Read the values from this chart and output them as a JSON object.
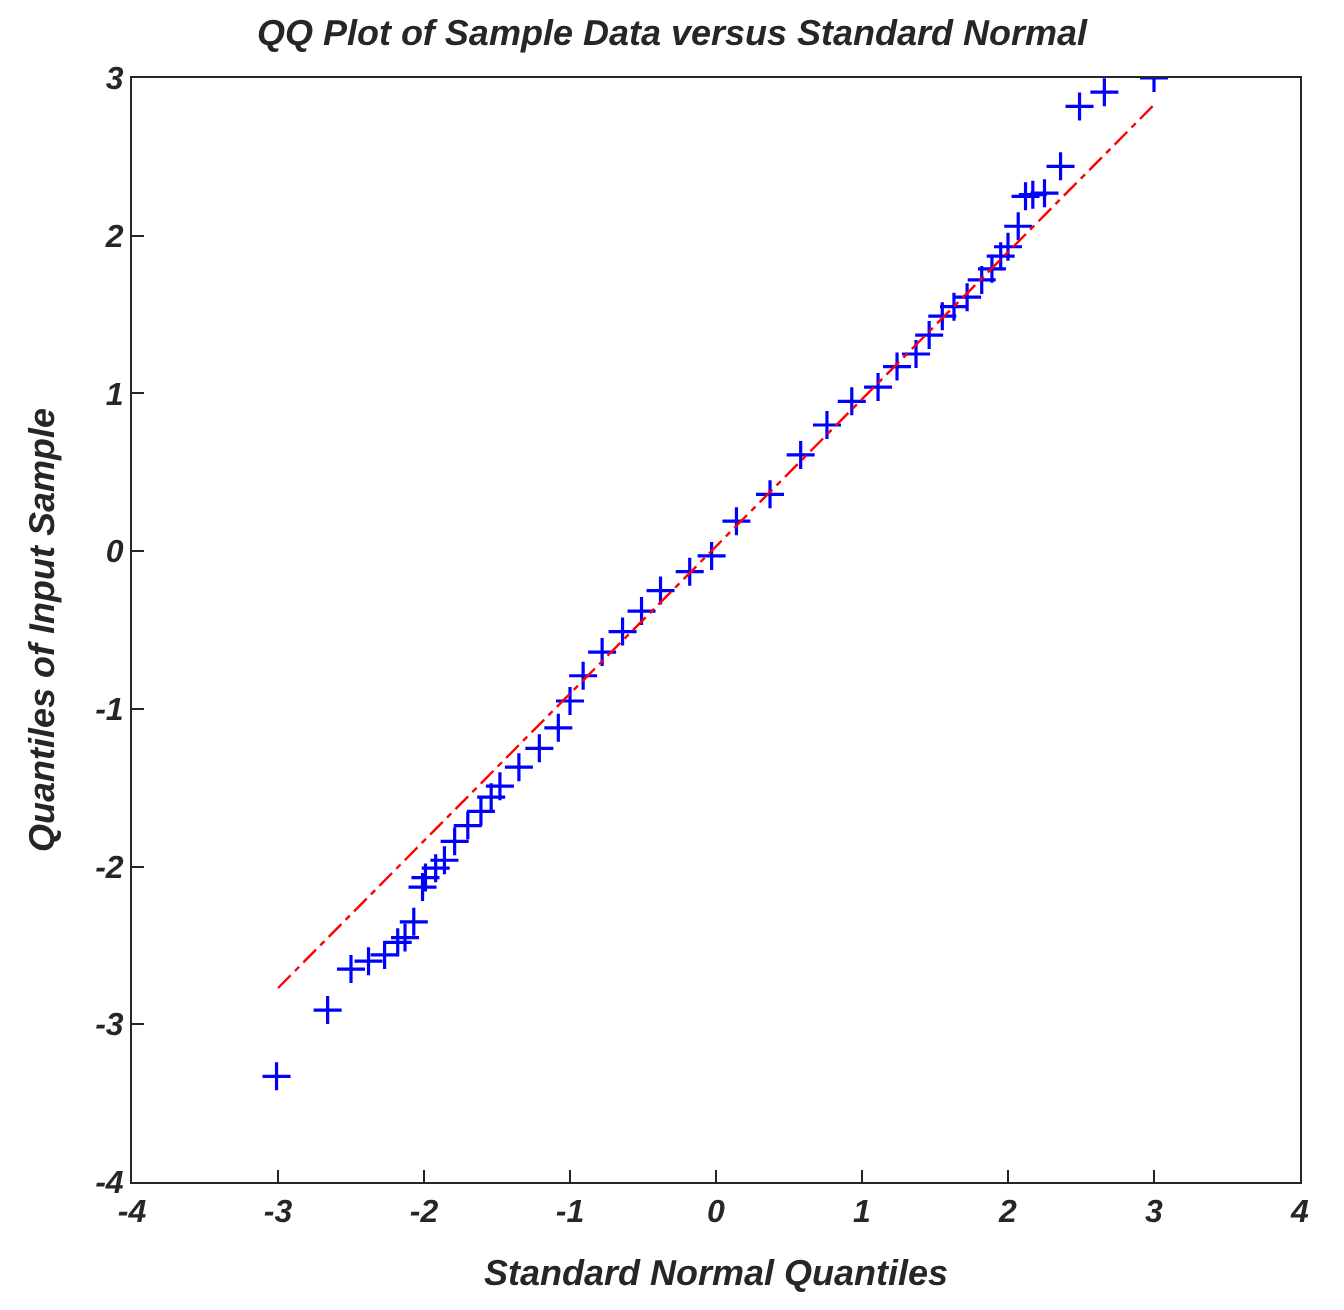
{
  "chart_data": {
    "type": "scatter",
    "title": "QQ Plot of Sample Data versus Standard Normal",
    "xlabel": "Standard Normal Quantiles",
    "ylabel": "Quantiles of Input Sample",
    "xlim": [
      -4,
      4
    ],
    "ylim": [
      -4,
      3
    ],
    "xticks": [
      -4,
      -3,
      -2,
      -1,
      0,
      1,
      2,
      3,
      4
    ],
    "yticks": [
      -4,
      -3,
      -2,
      -1,
      0,
      1,
      2,
      3
    ],
    "series": [
      {
        "marker": "cross",
        "color": "#0000ff",
        "x": [
          -3.01,
          -2.66,
          -2.5,
          -2.38,
          -2.27,
          -2.18,
          -2.13,
          -2.07,
          -2.01,
          -1.99,
          -1.92,
          -1.86,
          -1.79,
          -1.7,
          -1.61,
          -1.54,
          -1.48,
          -1.35,
          -1.21,
          -1.08,
          -1.0,
          -0.91,
          -0.78,
          -0.64,
          -0.51,
          -0.38,
          -0.18,
          -0.03,
          0.14,
          0.37,
          0.58,
          0.76,
          0.93,
          1.11,
          1.24,
          1.37,
          1.46,
          1.55,
          1.63,
          1.72,
          1.82,
          1.89,
          1.95,
          2.0,
          2.07,
          2.12,
          2.17,
          2.25,
          2.36,
          2.49,
          2.66,
          3.0
        ],
        "values": [
          -3.33,
          -2.91,
          -2.65,
          -2.6,
          -2.56,
          -2.48,
          -2.45,
          -2.35,
          -2.13,
          -2.07,
          -2.01,
          -1.96,
          -1.84,
          -1.74,
          -1.65,
          -1.56,
          -1.49,
          -1.37,
          -1.25,
          -1.12,
          -0.95,
          -0.79,
          -0.64,
          -0.51,
          -0.38,
          -0.25,
          -0.13,
          -0.03,
          0.19,
          0.36,
          0.61,
          0.8,
          0.95,
          1.04,
          1.17,
          1.25,
          1.37,
          1.49,
          1.55,
          1.61,
          1.72,
          1.79,
          1.87,
          1.93,
          2.06,
          2.25,
          2.26,
          2.27,
          2.44,
          2.82,
          2.91,
          3.0
        ]
      },
      {
        "type": "line",
        "line_style": "dashed",
        "color": "#ff0000",
        "x": [
          -3,
          3
        ],
        "values": [
          -2.77,
          2.83
        ]
      }
    ]
  }
}
